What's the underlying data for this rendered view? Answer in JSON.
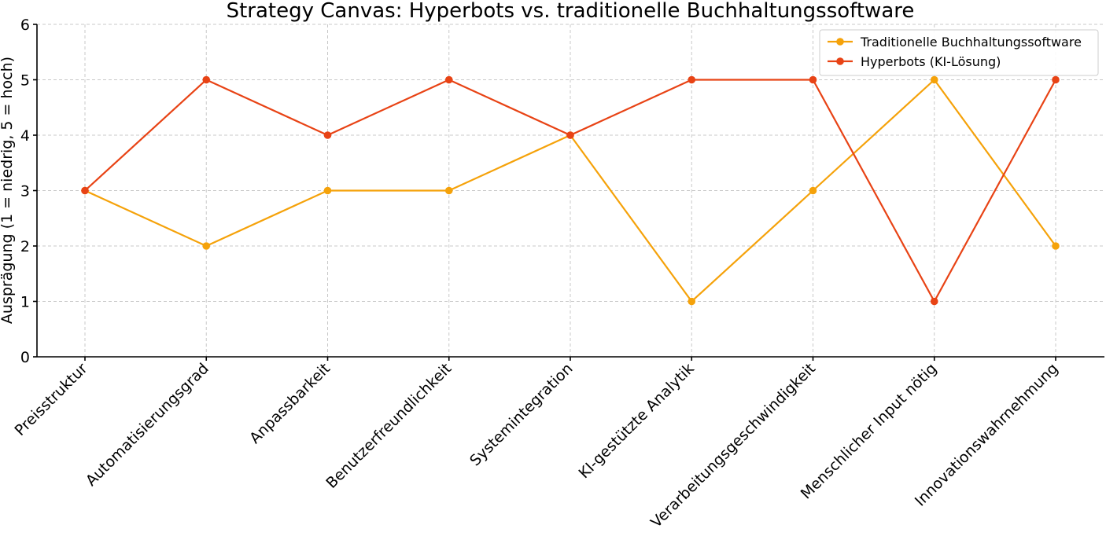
{
  "chart_data": {
    "type": "line",
    "title": "Strategy Canvas: Hyperbots vs. traditionelle Buchhaltungssoftware",
    "xlabel": "",
    "ylabel": "Ausprägung (1 = niedrig, 5 = hoch)",
    "ylim": [
      0,
      6
    ],
    "yticks": [
      0,
      1,
      2,
      3,
      4,
      5,
      6
    ],
    "grid": true,
    "legend_position": "top-right",
    "categories": [
      "Preisstruktur",
      "Automatisierungsgrad",
      "Anpassbarkeit",
      "Benutzerfreundlichkeit",
      "Systemintegration",
      "KI-gestützte Analytik",
      "Verarbeitungsgeschwindigkeit",
      "Menschlicher Input nötig",
      "Innovationswahrnehmung"
    ],
    "series": [
      {
        "name": "Traditionelle Buchhaltungssoftware",
        "color": "#f5a20a",
        "values": [
          3,
          2,
          3,
          3,
          4,
          1,
          3,
          5,
          2
        ]
      },
      {
        "name": "Hyperbots (KI-Lösung)",
        "color": "#e84315",
        "values": [
          3,
          5,
          4,
          5,
          4,
          5,
          5,
          1,
          5
        ]
      }
    ]
  }
}
